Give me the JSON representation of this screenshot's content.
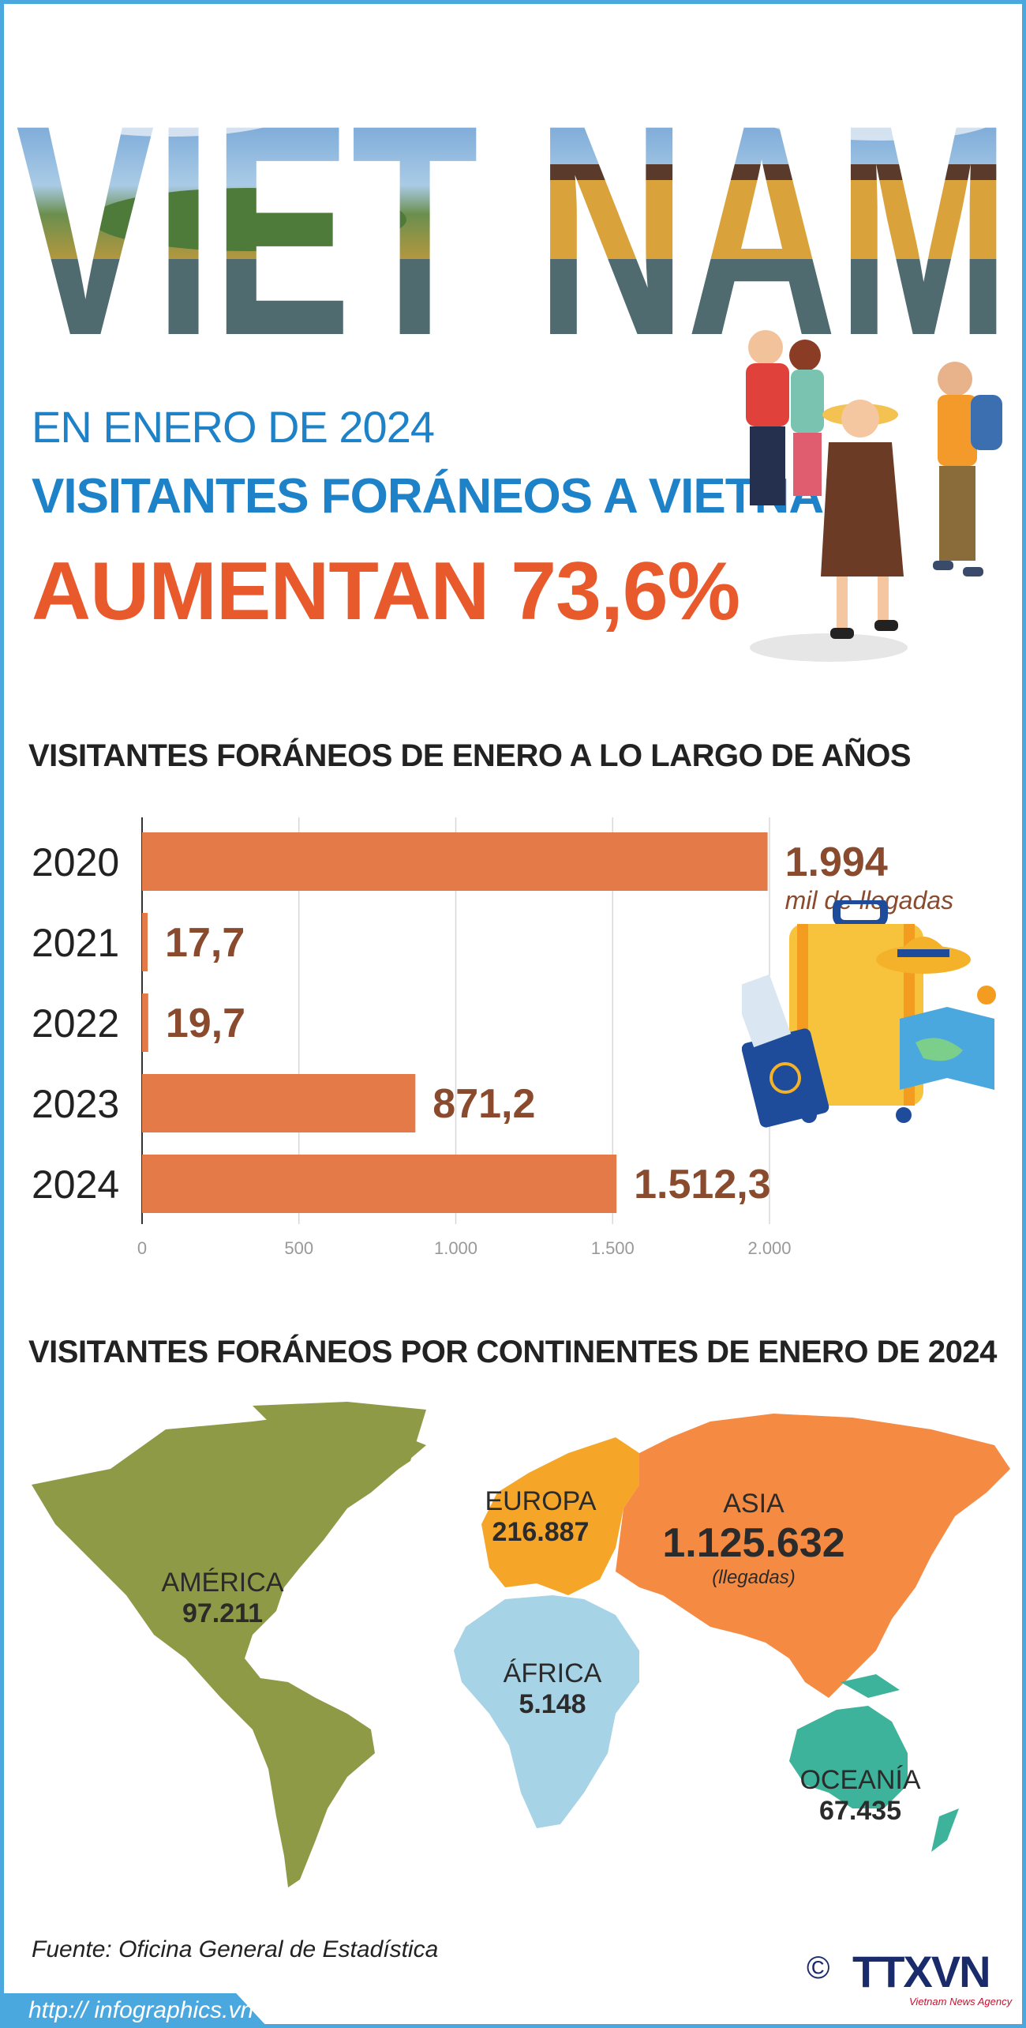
{
  "hero": {
    "title": "VIET NAM"
  },
  "headline": {
    "sub": "EN ENERO DE 2024",
    "main": "VISITANTES FORÁNEOS A VIETNAM",
    "big": "AUMENTAN 73,6%"
  },
  "chart_title": "VISITANTES FORÁNEOS DE ENERO A LO LARGO DE AÑOS",
  "chart_data": {
    "type": "bar",
    "orientation": "horizontal",
    "categories": [
      "2020",
      "2021",
      "2022",
      "2023",
      "2024"
    ],
    "values": [
      1994,
      17.7,
      19.7,
      871.2,
      1512.3
    ],
    "value_labels": [
      "1.994",
      "17,7",
      "19,7",
      "871,2",
      "1.512,3"
    ],
    "unit_label": "mil de llegadas",
    "xlim": [
      0,
      2000
    ],
    "xticks": [
      0,
      500,
      1000,
      1500,
      2000
    ],
    "xtick_labels": [
      "0",
      "500",
      "1.000",
      "1.500",
      "2.000"
    ],
    "grid": true,
    "bar_color": "#e57a49",
    "label_color": "#8a4a2d"
  },
  "map_title": "VISITANTES FORÁNEOS POR CONTINENTES DE ENERO DE 2024",
  "continents": {
    "america": {
      "name": "AMÉRICA",
      "value": "97.211",
      "color": "#8e9a45"
    },
    "europa": {
      "name": "EUROPA",
      "value": "216.887",
      "color": "#f5a629"
    },
    "asia": {
      "name": "ASIA",
      "value": "1.125.632",
      "unit": "(llegadas)",
      "color": "#f58a43"
    },
    "africa": {
      "name": "ÁFRICA",
      "value": "5.148",
      "color": "#a6d3e6"
    },
    "oceania": {
      "name": "OCEANÍA",
      "value": "67.435",
      "color": "#3cb39a"
    }
  },
  "footer": {
    "source": "Fuente: Oficina General de Estadística",
    "url": "http:// infographics.vn",
    "copyright": "©",
    "logo": "TTXVN",
    "logo_sub": "Vietnam News Agency"
  },
  "colors": {
    "frame": "#4aa8df",
    "headline_blue": "#1e82c8",
    "headline_orange": "#e8592c"
  }
}
